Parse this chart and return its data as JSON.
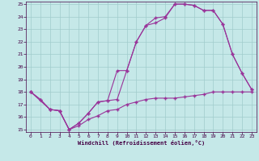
{
  "xlabel": "Windchill (Refroidissement éolien,°C)",
  "bg_color": "#c5e8e8",
  "grid_color": "#a0cccc",
  "line_color": "#993399",
  "xlim": [
    -0.5,
    23.5
  ],
  "ylim": [
    14.8,
    25.2
  ],
  "xticks": [
    0,
    1,
    2,
    3,
    4,
    5,
    6,
    7,
    8,
    9,
    10,
    11,
    12,
    13,
    14,
    15,
    16,
    17,
    18,
    19,
    20,
    21,
    22,
    23
  ],
  "yticks": [
    15,
    16,
    17,
    18,
    19,
    20,
    21,
    22,
    23,
    24,
    25
  ],
  "line1_x": [
    0,
    1,
    2,
    3,
    4,
    5,
    6,
    7,
    8,
    9,
    10,
    11,
    12,
    13,
    14,
    15,
    16,
    17,
    18,
    19,
    20,
    21,
    22,
    23
  ],
  "line1_y": [
    18.0,
    17.4,
    16.6,
    16.5,
    15.0,
    15.3,
    15.8,
    16.1,
    16.5,
    16.6,
    17.0,
    17.2,
    17.4,
    17.5,
    17.5,
    17.5,
    17.6,
    17.7,
    17.8,
    18.0,
    18.0,
    18.0,
    18.0,
    18.0
  ],
  "line2_x": [
    0,
    1,
    2,
    3,
    4,
    5,
    6,
    7,
    8,
    9,
    10,
    11,
    12,
    13,
    14,
    15,
    16,
    17,
    18,
    19,
    20,
    21,
    22,
    23
  ],
  "line2_y": [
    18.0,
    17.4,
    16.6,
    16.5,
    15.0,
    15.5,
    16.3,
    17.2,
    17.3,
    17.4,
    19.7,
    22.0,
    23.3,
    23.5,
    23.9,
    25.0,
    25.0,
    24.9,
    24.5,
    24.5,
    23.4,
    21.0,
    19.5,
    18.2
  ],
  "line3_x": [
    0,
    2,
    3,
    4,
    5,
    6,
    7,
    8,
    9,
    10,
    11,
    12,
    13,
    14,
    15,
    16,
    17,
    18,
    19,
    20,
    21,
    22,
    23
  ],
  "line3_y": [
    18.0,
    16.6,
    16.5,
    15.0,
    15.5,
    16.3,
    17.2,
    17.3,
    19.7,
    19.7,
    22.0,
    23.3,
    23.9,
    24.0,
    25.0,
    25.0,
    24.9,
    24.5,
    24.5,
    23.4,
    21.0,
    19.5,
    18.2
  ]
}
